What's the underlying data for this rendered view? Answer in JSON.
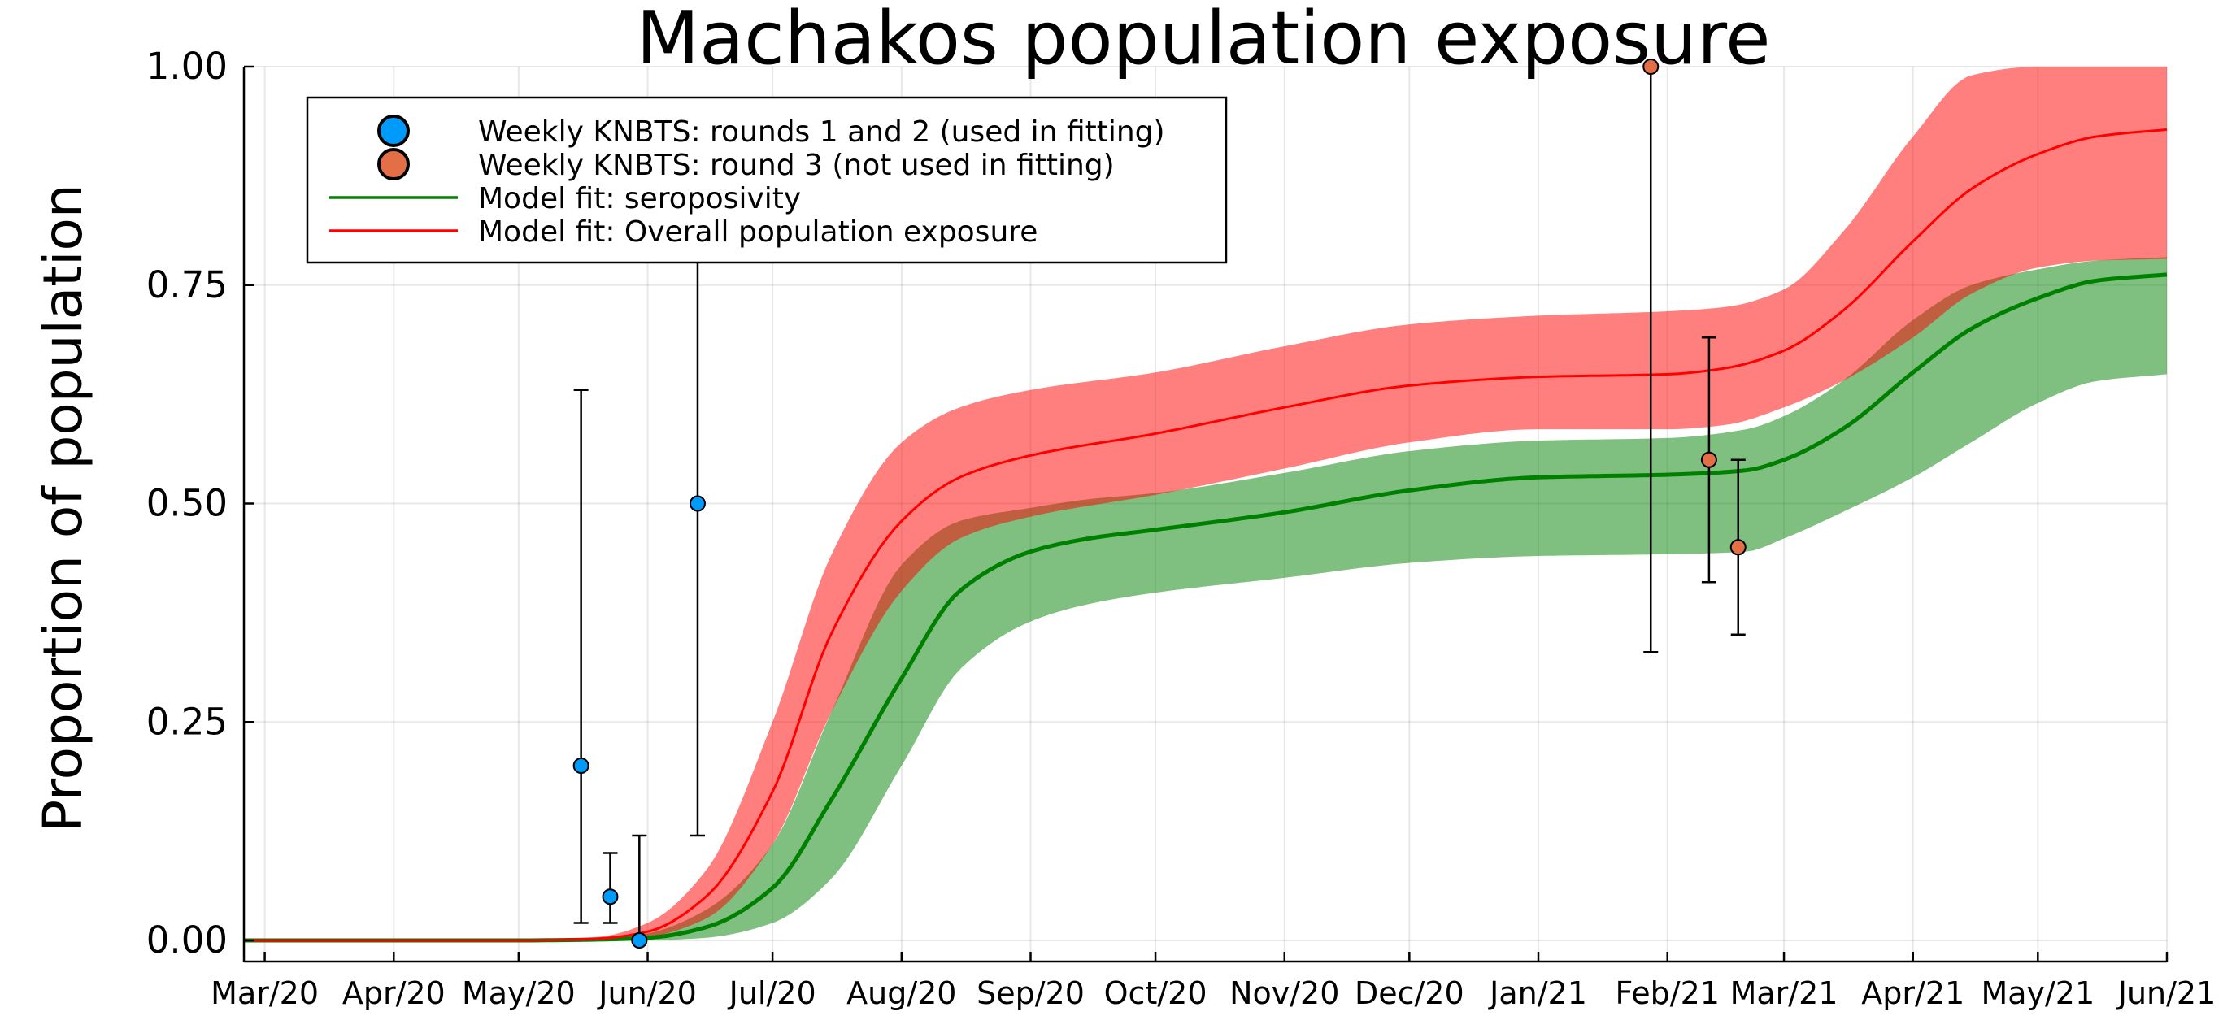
{
  "chart_data": {
    "type": "line",
    "title": "Machakos population exposure",
    "ylabel": "Proportion of population",
    "xlabel": "",
    "ylim": [
      0,
      1
    ],
    "xlim": [
      "2020-02-25",
      "2021-06-01"
    ],
    "y_ticks": [
      {
        "value": 0,
        "label": "0.00"
      },
      {
        "value": 0.25,
        "label": "0.25"
      },
      {
        "value": 0.5,
        "label": "0.50"
      },
      {
        "value": 0.75,
        "label": "0.75"
      },
      {
        "value": 1,
        "label": "1.00"
      }
    ],
    "x_ticks": [
      {
        "date": "2020-03-01",
        "label": "Mar/20"
      },
      {
        "date": "2020-04-01",
        "label": "Apr/20"
      },
      {
        "date": "2020-05-01",
        "label": "May/20"
      },
      {
        "date": "2020-06-01",
        "label": "Jun/20"
      },
      {
        "date": "2020-07-01",
        "label": "Jul/20"
      },
      {
        "date": "2020-08-01",
        "label": "Aug/20"
      },
      {
        "date": "2020-09-01",
        "label": "Sep/20"
      },
      {
        "date": "2020-10-01",
        "label": "Oct/20"
      },
      {
        "date": "2020-11-01",
        "label": "Nov/20"
      },
      {
        "date": "2020-12-01",
        "label": "Dec/20"
      },
      {
        "date": "2021-01-01",
        "label": "Jan/21"
      },
      {
        "date": "2021-02-01",
        "label": "Feb/21"
      },
      {
        "date": "2021-03-01",
        "label": "Mar/21"
      },
      {
        "date": "2021-04-01",
        "label": "Apr/21"
      },
      {
        "date": "2021-05-01",
        "label": "May/21"
      },
      {
        "date": "2021-06-01",
        "label": "Jun/21"
      }
    ],
    "grid": true,
    "legend_position": "top-left",
    "series": [
      {
        "name": "Weekly KNBTS: rounds 1 and 2 (used in fitting)",
        "kind": "scatter",
        "color": "#009AFA",
        "points": [
          {
            "x": "2020-05-16",
            "y": 0.2,
            "lo": 0.02,
            "hi": 0.63
          },
          {
            "x": "2020-05-23",
            "y": 0.05,
            "lo": 0.02,
            "hi": 0.1
          },
          {
            "x": "2020-05-30",
            "y": 0.0,
            "lo": 0.0,
            "hi": 0.12
          },
          {
            "x": "2020-06-13",
            "y": 0.5,
            "lo": 0.12,
            "hi": 0.88
          }
        ]
      },
      {
        "name": "Weekly KNBTS: round 3 (not used in fitting)",
        "kind": "scatter",
        "color": "#E26F46",
        "points": [
          {
            "x": "2021-01-28",
            "y": 1.0,
            "lo": 0.33,
            "hi": 1.0
          },
          {
            "x": "2021-02-11",
            "y": 0.55,
            "lo": 0.41,
            "hi": 0.69
          },
          {
            "x": "2021-02-18",
            "y": 0.45,
            "lo": 0.35,
            "hi": 0.55
          }
        ]
      },
      {
        "name": "Model fit: seroposivity",
        "kind": "line_band",
        "color": "#008000",
        "points": [
          {
            "x": "2020-02-25",
            "y": 0.0,
            "lo": 0.0,
            "hi": 0.0
          },
          {
            "x": "2020-05-01",
            "y": 0.0,
            "lo": 0.0,
            "hi": 0.0
          },
          {
            "x": "2020-05-20",
            "y": 0.001,
            "lo": 0.0,
            "hi": 0.001
          },
          {
            "x": "2020-06-01",
            "y": 0.003,
            "lo": 0.0,
            "hi": 0.008
          },
          {
            "x": "2020-06-15",
            "y": 0.015,
            "lo": 0.003,
            "hi": 0.035
          },
          {
            "x": "2020-07-01",
            "y": 0.06,
            "lo": 0.02,
            "hi": 0.11
          },
          {
            "x": "2020-07-15",
            "y": 0.16,
            "lo": 0.07,
            "hi": 0.26
          },
          {
            "x": "2020-08-01",
            "y": 0.3,
            "lo": 0.2,
            "hi": 0.43
          },
          {
            "x": "2020-08-15",
            "y": 0.4,
            "lo": 0.31,
            "hi": 0.48
          },
          {
            "x": "2020-09-01",
            "y": 0.445,
            "lo": 0.365,
            "hi": 0.495
          },
          {
            "x": "2020-09-15",
            "y": 0.46,
            "lo": 0.385,
            "hi": 0.505
          },
          {
            "x": "2020-10-01",
            "y": 0.47,
            "lo": 0.398,
            "hi": 0.512
          },
          {
            "x": "2020-11-01",
            "y": 0.49,
            "lo": 0.415,
            "hi": 0.535
          },
          {
            "x": "2020-12-01",
            "y": 0.515,
            "lo": 0.432,
            "hi": 0.56
          },
          {
            "x": "2021-01-01",
            "y": 0.53,
            "lo": 0.44,
            "hi": 0.572
          },
          {
            "x": "2021-02-01",
            "y": 0.533,
            "lo": 0.442,
            "hi": 0.575
          },
          {
            "x": "2021-02-20",
            "y": 0.538,
            "lo": 0.445,
            "hi": 0.585
          },
          {
            "x": "2021-03-01",
            "y": 0.55,
            "lo": 0.46,
            "hi": 0.6
          },
          {
            "x": "2021-03-15",
            "y": 0.585,
            "lo": 0.49,
            "hi": 0.64
          },
          {
            "x": "2021-04-01",
            "y": 0.65,
            "lo": 0.53,
            "hi": 0.71
          },
          {
            "x": "2021-04-15",
            "y": 0.7,
            "lo": 0.57,
            "hi": 0.75
          },
          {
            "x": "2021-05-01",
            "y": 0.735,
            "lo": 0.615,
            "hi": 0.768
          },
          {
            "x": "2021-05-15",
            "y": 0.755,
            "lo": 0.64,
            "hi": 0.778
          },
          {
            "x": "2021-06-01",
            "y": 0.762,
            "lo": 0.648,
            "hi": 0.782
          }
        ]
      },
      {
        "name": "Model fit: Overall population exposure",
        "kind": "line_band",
        "color": "#FF0000",
        "points": [
          {
            "x": "2020-02-25",
            "y": 0.0,
            "lo": 0.0,
            "hi": 0.0
          },
          {
            "x": "2020-05-01",
            "y": 0.0,
            "lo": 0.0,
            "hi": 0.001
          },
          {
            "x": "2020-05-20",
            "y": 0.002,
            "lo": 0.0,
            "hi": 0.004
          },
          {
            "x": "2020-06-01",
            "y": 0.01,
            "lo": 0.004,
            "hi": 0.02
          },
          {
            "x": "2020-06-15",
            "y": 0.05,
            "lo": 0.025,
            "hi": 0.08
          },
          {
            "x": "2020-07-01",
            "y": 0.17,
            "lo": 0.11,
            "hi": 0.25
          },
          {
            "x": "2020-07-15",
            "y": 0.35,
            "lo": 0.26,
            "hi": 0.44
          },
          {
            "x": "2020-08-01",
            "y": 0.48,
            "lo": 0.4,
            "hi": 0.57
          },
          {
            "x": "2020-08-15",
            "y": 0.53,
            "lo": 0.46,
            "hi": 0.61
          },
          {
            "x": "2020-09-01",
            "y": 0.555,
            "lo": 0.485,
            "hi": 0.63
          },
          {
            "x": "2020-10-01",
            "y": 0.58,
            "lo": 0.51,
            "hi": 0.65
          },
          {
            "x": "2020-11-01",
            "y": 0.61,
            "lo": 0.54,
            "hi": 0.68
          },
          {
            "x": "2020-12-01",
            "y": 0.635,
            "lo": 0.57,
            "hi": 0.705
          },
          {
            "x": "2021-01-01",
            "y": 0.645,
            "lo": 0.585,
            "hi": 0.715
          },
          {
            "x": "2021-02-01",
            "y": 0.648,
            "lo": 0.585,
            "hi": 0.72
          },
          {
            "x": "2021-02-15",
            "y": 0.655,
            "lo": 0.59,
            "hi": 0.725
          },
          {
            "x": "2021-03-01",
            "y": 0.675,
            "lo": 0.61,
            "hi": 0.745
          },
          {
            "x": "2021-03-15",
            "y": 0.72,
            "lo": 0.64,
            "hi": 0.81
          },
          {
            "x": "2021-04-01",
            "y": 0.8,
            "lo": 0.69,
            "hi": 0.92
          },
          {
            "x": "2021-04-15",
            "y": 0.86,
            "lo": 0.74,
            "hi": 0.99
          },
          {
            "x": "2021-05-01",
            "y": 0.9,
            "lo": 0.77,
            "hi": 1.0
          },
          {
            "x": "2021-05-15",
            "y": 0.92,
            "lo": 0.778,
            "hi": 1.0
          },
          {
            "x": "2021-06-01",
            "y": 0.928,
            "lo": 0.78,
            "hi": 1.0
          }
        ]
      }
    ],
    "legend": [
      {
        "label": "Weekly KNBTS: rounds 1 and 2 (used in fitting)",
        "symbol": "marker",
        "color": "#009AFA"
      },
      {
        "label": "Weekly KNBTS: round 3 (not used in fitting)",
        "symbol": "marker",
        "color": "#E26F46"
      },
      {
        "label": "Model fit: seroposivity",
        "symbol": "line",
        "color": "#008000"
      },
      {
        "label": "Model fit: Overall population exposure",
        "symbol": "line",
        "color": "#FF0000"
      }
    ]
  }
}
